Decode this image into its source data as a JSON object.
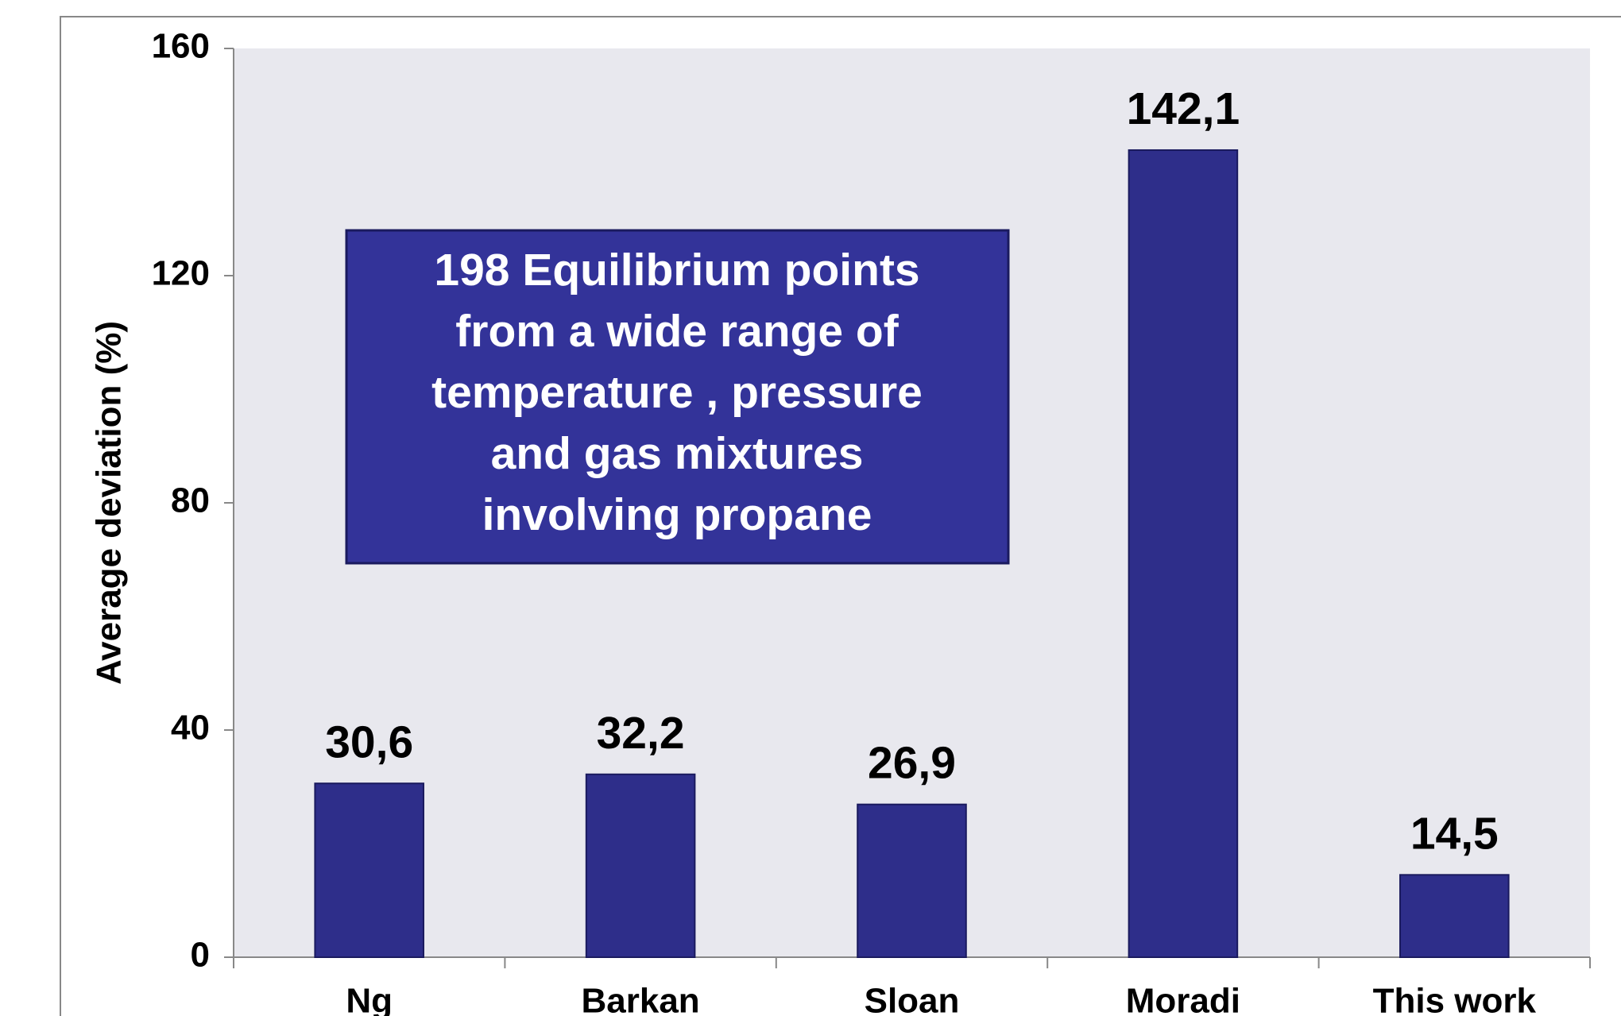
{
  "chart_data": {
    "type": "bar",
    "ylabel": "Average deviation (%)",
    "categories": [
      "Ng",
      "Barkan",
      "Sloan",
      "Moradi",
      "This work"
    ],
    "values": [
      30.6,
      32.2,
      26.9,
      142.1,
      14.5
    ],
    "value_labels": [
      "30,6",
      "32,2",
      "26,9",
      "142,1",
      "14,5"
    ],
    "color": "#2e2e8a",
    "ylim": [
      0,
      160
    ],
    "yticks": [
      0,
      40,
      80,
      120,
      160
    ],
    "annotation": [
      "198 Equilibrium points",
      "from a wide range of",
      "temperature , pressure",
      "and gas mixtures",
      "involving propane"
    ]
  }
}
